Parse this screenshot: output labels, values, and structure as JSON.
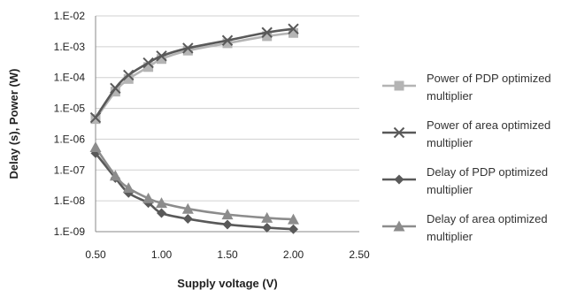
{
  "chart_data": {
    "type": "line",
    "xlabel": "Supply voltage (V)",
    "ylabel": "Delay (s), Power (W)",
    "xlim": [
      0.5,
      2.5
    ],
    "xticks": [
      "0.50",
      "1.00",
      "1.50",
      "2.00",
      "2.50"
    ],
    "ylim": [
      1e-09,
      0.01
    ],
    "yscale": "log",
    "yticks": [
      "1.E-09",
      "1.E-08",
      "1.E-07",
      "1.E-06",
      "1.E-05",
      "1.E-04",
      "1.E-03",
      "1.E-02"
    ],
    "grid": "horizontal",
    "legend_position": "right",
    "series": [
      {
        "name": "Power of PDP optimized multiplier",
        "marker": "square",
        "color": "#b4b4b4",
        "x": [
          0.5,
          0.65,
          0.75,
          0.9,
          1.0,
          1.2,
          1.5,
          1.8,
          2.0
        ],
        "y": [
          4.5e-06,
          3.5e-05,
          9e-05,
          0.00022,
          0.0004,
          0.00075,
          0.0013,
          0.0022,
          0.0028
        ]
      },
      {
        "name": "Power of area optimized multiplier",
        "marker": "x",
        "color": "#595959",
        "x": [
          0.5,
          0.65,
          0.75,
          0.9,
          1.0,
          1.2,
          1.5,
          1.8,
          2.0
        ],
        "y": [
          5e-06,
          4.5e-05,
          0.00012,
          0.0003,
          0.0005,
          0.0009,
          0.0016,
          0.0029,
          0.0038
        ]
      },
      {
        "name": "Delay of PDP optimized multiplier",
        "marker": "diamond",
        "color": "#595959",
        "x": [
          0.5,
          0.65,
          0.75,
          0.9,
          1.0,
          1.2,
          1.5,
          1.8,
          2.0
        ],
        "y": [
          3.5e-07,
          5.5e-08,
          1.8e-08,
          8.5e-09,
          4e-09,
          2.6e-09,
          1.7e-09,
          1.35e-09,
          1.2e-09
        ]
      },
      {
        "name": "Delay of area optimized multiplier",
        "marker": "triangle",
        "color": "#8c8c8c",
        "x": [
          0.5,
          0.65,
          0.75,
          0.9,
          1.0,
          1.2,
          1.5,
          1.8,
          2.0
        ],
        "y": [
          5.5e-07,
          6.5e-08,
          2.6e-08,
          1.2e-08,
          8.5e-09,
          5.5e-09,
          3.6e-09,
          2.8e-09,
          2.5e-09
        ]
      }
    ]
  }
}
